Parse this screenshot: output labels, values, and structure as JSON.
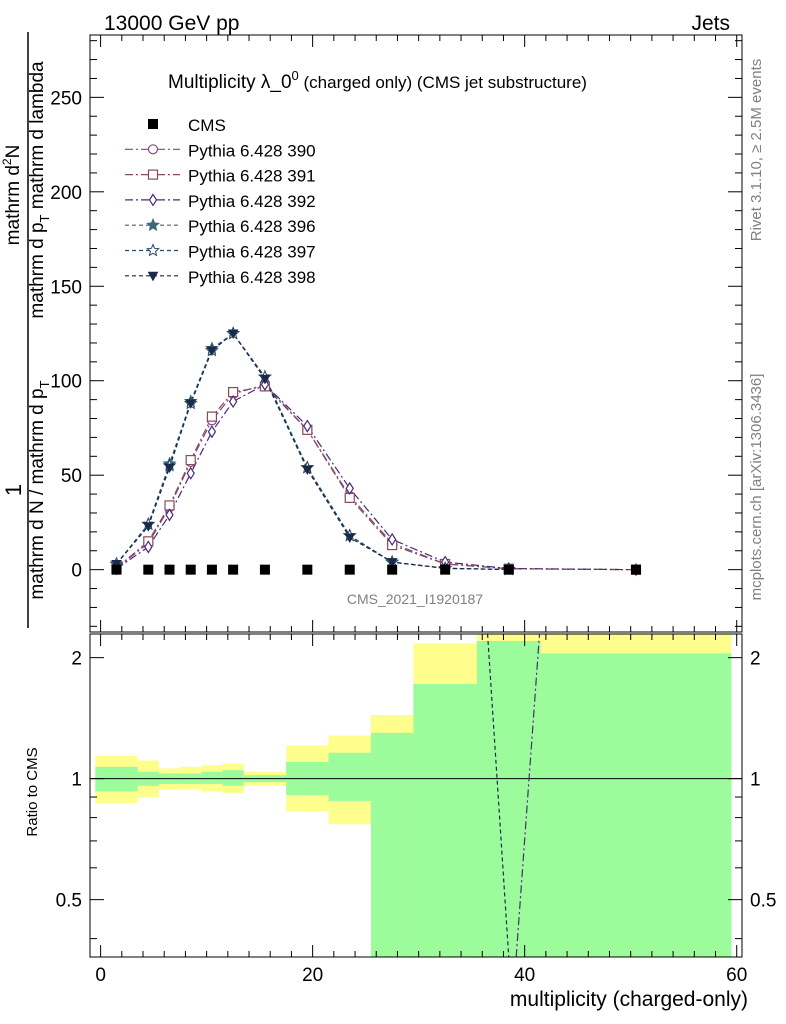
{
  "header": {
    "left": "13000 GeV pp",
    "right": "Jets"
  },
  "side_labels": {
    "rivet": "Rivet 3.1.10, ≥ 2.5M events",
    "mcplots": "mcplots.cern.ch [arXiv:1306.3436]"
  },
  "chart_data": [
    {
      "type": "line",
      "panel": "main",
      "title_main": "Multiplicity λ_0",
      "title_sup": "0",
      "title_sub": " (charged only) (CMS jet substructure)",
      "ylabel_prefix": "1",
      "ylabel_denominator": "mathrm d N / mathrm d p",
      "ylabel_d_num": "mathrm d",
      "ylabel_d_num_sup": "2",
      "ylabel_d_num_rest": "N",
      "ylabel_d_den": "mathrm d p",
      "ylabel_d_den_rest": " mathrm d lambda",
      "ylabel_sub_T": "T",
      "xlim": [
        -1,
        60.5
      ],
      "ylim": [
        -33,
        283
      ],
      "yticks": [
        0,
        50,
        100,
        150,
        200,
        250
      ],
      "watermark": "CMS_2021_I1920187",
      "legend_position": "top-left",
      "cms": {
        "name": "CMS",
        "x": [
          1.5,
          4.5,
          6.5,
          8.5,
          10.5,
          12.5,
          15.5,
          19.5,
          23.5,
          27.5,
          32.5,
          38.5,
          50.5
        ],
        "y": [
          0,
          0,
          0,
          0,
          0,
          0,
          0,
          0,
          0,
          0,
          0,
          0,
          0
        ]
      },
      "series": [
        {
          "name": "Pythia 6.428 390",
          "marker": "circle-open",
          "color": "#7a4a8a",
          "dash": "8,3,2,3",
          "x": [
            1.5,
            4.5,
            6.5,
            8.5,
            10.5,
            12.5,
            15.5,
            19.5,
            23.5,
            27.5,
            32.5,
            38.5,
            50.5
          ],
          "y": [
            0.7,
            14,
            33,
            57,
            79,
            93,
            98,
            74,
            39,
            14,
            3,
            0.5,
            0
          ]
        },
        {
          "name": "Pythia 6.428 391",
          "marker": "square-open",
          "color": "#8a4a5a",
          "dash": "8,3,2,3",
          "x": [
            1.5,
            4.5,
            6.5,
            8.5,
            10.5,
            12.5,
            15.5,
            19.5,
            23.5,
            27.5,
            32.5,
            38.5,
            50.5
          ],
          "y": [
            0.9,
            15,
            34,
            58,
            81,
            94,
            97,
            74,
            38,
            13,
            3,
            0.5,
            0
          ]
        },
        {
          "name": "Pythia 6.428 392",
          "marker": "diamond-open",
          "color": "#4a2a7a",
          "dash": "8,3,2,3",
          "x": [
            1.5,
            4.5,
            6.5,
            8.5,
            10.5,
            12.5,
            15.5,
            19.5,
            23.5,
            27.5,
            32.5,
            38.5,
            50.5
          ],
          "y": [
            0.5,
            12,
            29,
            51,
            73,
            89,
            98,
            76,
            43,
            16,
            4,
            0.6,
            0
          ]
        },
        {
          "name": "Pythia 6.428 396",
          "marker": "star-filled",
          "color": "#3a6a7a",
          "dash": "4,3",
          "x": [
            1.5,
            4.5,
            6.5,
            8.5,
            10.5,
            12.5,
            15.5,
            19.5,
            23.5,
            27.5,
            32.5,
            38.5
          ],
          "y": [
            3,
            24,
            56,
            89,
            117,
            125,
            102,
            54,
            18,
            4,
            0.7,
            0.1
          ]
        },
        {
          "name": "Pythia 6.428 397",
          "marker": "star-open",
          "color": "#2a4a6a",
          "dash": "4,3",
          "x": [
            1.5,
            4.5,
            6.5,
            8.5,
            10.5,
            12.5,
            15.5,
            19.5,
            23.5,
            27.5,
            32.5,
            38.5
          ],
          "y": [
            3,
            24,
            55,
            88,
            116,
            125,
            102,
            54,
            18,
            4,
            0.7,
            0.1
          ]
        },
        {
          "name": "Pythia 6.428 398",
          "marker": "triangle-down-filled",
          "color": "#1a2a4a",
          "dash": "4,3",
          "x": [
            1.5,
            4.5,
            6.5,
            8.5,
            10.5,
            12.5,
            15.5,
            19.5,
            23.5,
            27.5,
            32.5,
            38.5
          ],
          "y": [
            3,
            23,
            54,
            88,
            116,
            125,
            101,
            53,
            17,
            4,
            0.7,
            0.1
          ]
        }
      ]
    },
    {
      "type": "area",
      "panel": "ratio",
      "ylabel": "Ratio to CMS",
      "xlabel": "multiplicity (charged-only)",
      "xlim": [
        -1,
        60.5
      ],
      "ylim": [
        0.36,
        2.29
      ],
      "xticks": [
        0,
        20,
        40,
        60
      ],
      "yticks": [
        0.5,
        1,
        2
      ],
      "ytick_labels": [
        "0.5",
        "1",
        "2"
      ],
      "bands": [
        {
          "x0": -0.5,
          "x1": 3.5,
          "stat_lo": 0.93,
          "stat_hi": 1.07,
          "tot_lo": 0.87,
          "tot_hi": 1.14
        },
        {
          "x0": 3.5,
          "x1": 5.5,
          "stat_lo": 0.96,
          "stat_hi": 1.04,
          "tot_lo": 0.9,
          "tot_hi": 1.11
        },
        {
          "x0": 5.5,
          "x1": 7.5,
          "stat_lo": 0.97,
          "stat_hi": 1.03,
          "tot_lo": 0.94,
          "tot_hi": 1.06
        },
        {
          "x0": 7.5,
          "x1": 9.5,
          "stat_lo": 0.97,
          "stat_hi": 1.03,
          "tot_lo": 0.94,
          "tot_hi": 1.07
        },
        {
          "x0": 9.5,
          "x1": 11.5,
          "stat_lo": 0.97,
          "stat_hi": 1.04,
          "tot_lo": 0.93,
          "tot_hi": 1.08
        },
        {
          "x0": 11.5,
          "x1": 13.5,
          "stat_lo": 0.96,
          "stat_hi": 1.05,
          "tot_lo": 0.92,
          "tot_hi": 1.09
        },
        {
          "x0": 13.5,
          "x1": 17.5,
          "stat_lo": 0.98,
          "stat_hi": 1.02,
          "tot_lo": 0.96,
          "tot_hi": 1.04
        },
        {
          "x0": 17.5,
          "x1": 21.5,
          "stat_lo": 0.91,
          "stat_hi": 1.1,
          "tot_lo": 0.83,
          "tot_hi": 1.21
        },
        {
          "x0": 21.5,
          "x1": 25.5,
          "stat_lo": 0.88,
          "stat_hi": 1.16,
          "tot_lo": 0.77,
          "tot_hi": 1.28
        },
        {
          "x0": 25.5,
          "x1": 29.5,
          "stat_lo": 0.36,
          "stat_hi": 1.3,
          "tot_lo": 0.47,
          "tot_hi": 1.44
        },
        {
          "x0": 29.5,
          "x1": 35.5,
          "stat_lo": 0.36,
          "stat_hi": 1.72,
          "tot_lo": 0.36,
          "tot_hi": 2.17
        },
        {
          "x0": 35.5,
          "x1": 41.5,
          "stat_lo": 0.36,
          "stat_hi": 2.2,
          "tot_lo": 0.36,
          "tot_hi": 2.29
        },
        {
          "x0": 41.5,
          "x1": 59.5,
          "stat_lo": 0.36,
          "stat_hi": 2.05,
          "tot_lo": 0.36,
          "tot_hi": 2.29
        }
      ],
      "ratio_lines": [
        {
          "x": [
            36.5,
            38.5
          ],
          "y": [
            2.29,
            0.36
          ],
          "color": "#1a2a4a",
          "dash": "4,3"
        },
        {
          "x": [
            39.2,
            41.4
          ],
          "y": [
            0.36,
            2.29
          ],
          "color": "#4a2a7a",
          "dash": "8,3,2,3"
        }
      ],
      "colors": {
        "stat": "#9cfc9c",
        "total": "#fefe8c",
        "line": "#000000"
      }
    }
  ]
}
